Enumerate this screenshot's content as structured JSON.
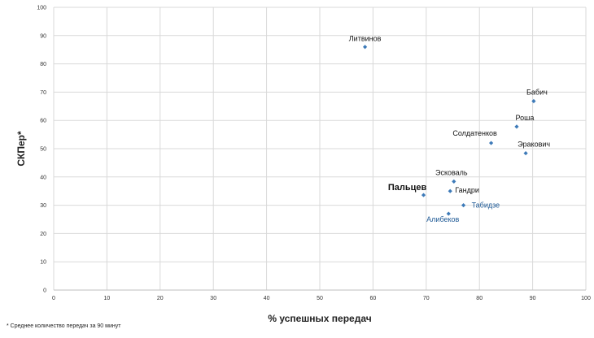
{
  "chart_data": {
    "type": "scatter",
    "xlabel": "% успешных передач",
    "ylabel": "СКПер*",
    "xlim": [
      0,
      100
    ],
    "ylim": [
      0,
      100
    ],
    "xticks": [
      "0",
      "10",
      "20",
      "30",
      "40",
      "50",
      "60",
      "70",
      "80",
      "90",
      "100"
    ],
    "yticks": [
      "0",
      "10",
      "20",
      "30",
      "40",
      "50",
      "60",
      "70",
      "80",
      "90",
      "100"
    ],
    "grid": true,
    "footnote": "* Среднее количество передач за 90 минут",
    "marker_color": "#3d7ab8",
    "highlight_label_color": "#1f5a96",
    "points": [
      {
        "label": "Литвинов",
        "x": 58.5,
        "y": 86
      },
      {
        "label": "Бабич",
        "x": 90.2,
        "y": 66.8
      },
      {
        "label": "Роша",
        "x": 87.0,
        "y": 57.8
      },
      {
        "label": "Солдатенков",
        "x": 82.2,
        "y": 52.0
      },
      {
        "label": "Эракович",
        "x": 88.7,
        "y": 48.4
      },
      {
        "label": "Эсковаль",
        "x": 75.2,
        "y": 38.4
      },
      {
        "label": "Гандри",
        "x": 74.5,
        "y": 35.0
      },
      {
        "label": "Пальцев",
        "x": 69.5,
        "y": 33.6,
        "emphasis": "bold"
      },
      {
        "label": "Табидзе",
        "x": 77.0,
        "y": 30.0,
        "emphasis": "blue"
      },
      {
        "label": "Алибеков",
        "x": 74.2,
        "y": 27.0,
        "emphasis": "blue"
      }
    ]
  }
}
